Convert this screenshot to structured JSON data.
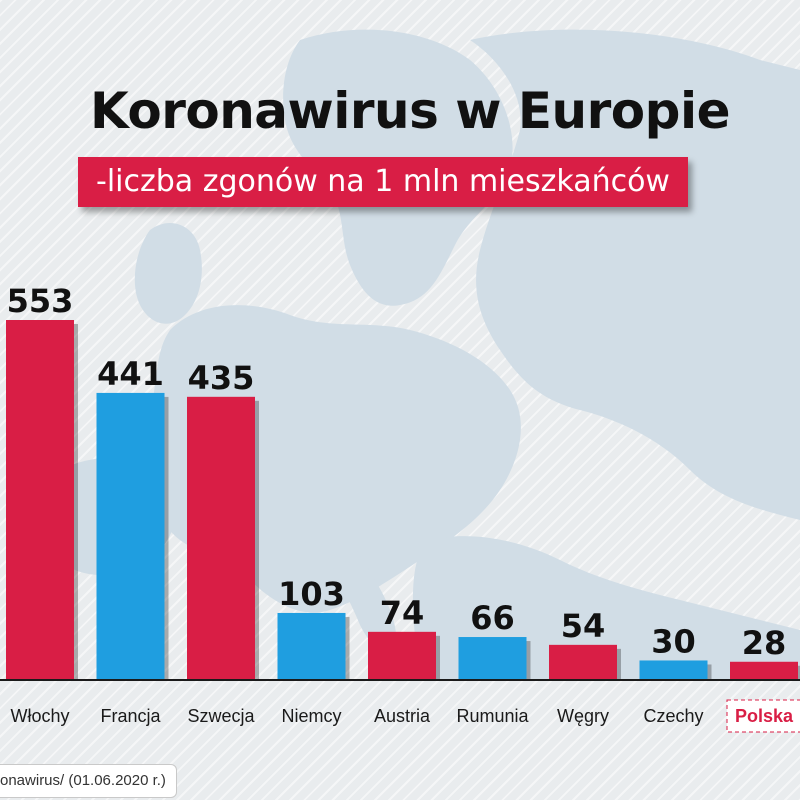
{
  "header": {
    "title": "Koronawirus w Europie",
    "subtitle": "-liczba zgonów na 1 mln mieszkańców"
  },
  "footer": {
    "source": "onawirus/ (01.06.2020 r.)"
  },
  "colors": {
    "red": "#d91e45",
    "blue": "#1f9ee0",
    "highlight_label": "#d91e45",
    "map": "#d1dde6"
  },
  "chart_data": {
    "type": "bar",
    "title": "Koronawirus w Europie",
    "subtitle": "-liczba zgonów na 1 mln mieszkańców",
    "categories": [
      "Włochy",
      "Francja",
      "Szwecja",
      "Niemcy",
      "Austria",
      "Rumunia",
      "Węgry",
      "Czechy",
      "Polska"
    ],
    "values": [
      553,
      441,
      435,
      103,
      74,
      66,
      54,
      30,
      28
    ],
    "bar_colors": [
      "red",
      "blue",
      "red",
      "blue",
      "red",
      "blue",
      "red",
      "blue",
      "red"
    ],
    "highlighted_category": "Polska",
    "data_labels": true,
    "ylim": [
      0,
      553
    ],
    "grid": false,
    "legend": "none"
  }
}
